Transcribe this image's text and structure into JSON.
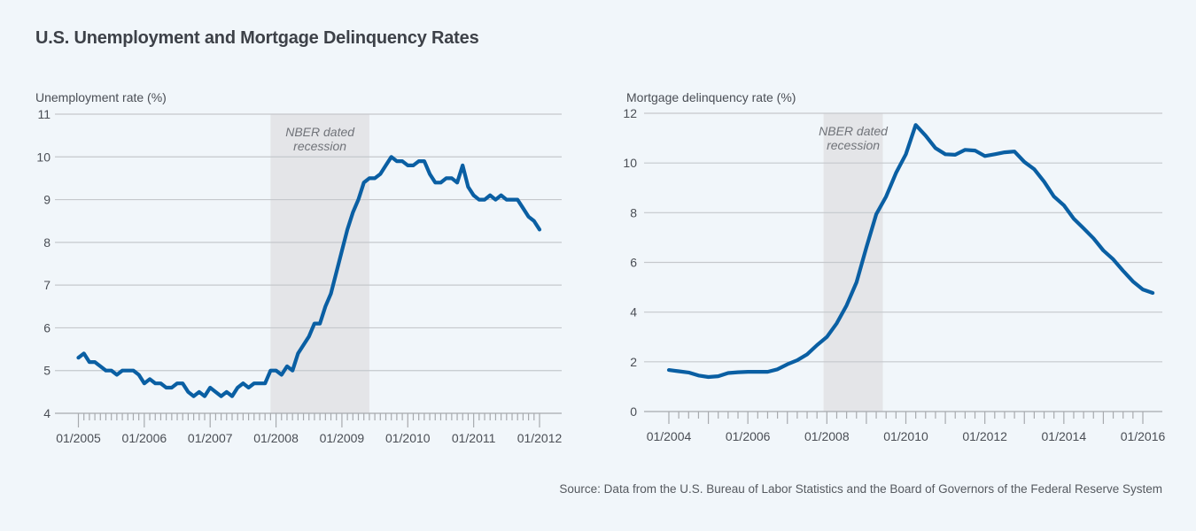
{
  "title": "U.S. Unemployment and Mortgage Delinquency Rates",
  "source": "Source: Data from the U.S. Bureau of Labor Statistics and the Board of Governors of the Federal Reserve System",
  "colors": {
    "line": "#0a5fa3",
    "recession": "#e4e5e8",
    "background": "#f1f6fa"
  },
  "chart_data": [
    {
      "type": "line",
      "title": "",
      "ylabel": "Unemployment rate (%)",
      "xlabel": "",
      "frequency": "monthly",
      "x_start": "01/2005",
      "x_end": "01/2012",
      "ylim": [
        4,
        11
      ],
      "yticks": [
        4,
        5,
        6,
        7,
        8,
        9,
        10,
        11
      ],
      "xtick_labels": [
        "01/2005",
        "01/2006",
        "01/2007",
        "01/2008",
        "01/2009",
        "01/2010",
        "01/2011",
        "01/2012"
      ],
      "grid": true,
      "recession": {
        "label_line1": "NBER dated",
        "label_line2": "recession",
        "start": "12/2007",
        "end": "06/2009"
      },
      "series": [
        {
          "name": "Unemployment rate",
          "values": [
            5.3,
            5.4,
            5.2,
            5.2,
            5.1,
            5.0,
            5.0,
            4.9,
            5.0,
            5.0,
            5.0,
            4.9,
            4.7,
            4.8,
            4.7,
            4.7,
            4.6,
            4.6,
            4.7,
            4.7,
            4.5,
            4.4,
            4.5,
            4.4,
            4.6,
            4.5,
            4.4,
            4.5,
            4.4,
            4.6,
            4.7,
            4.6,
            4.7,
            4.7,
            4.7,
            5.0,
            5.0,
            4.9,
            5.1,
            5.0,
            5.4,
            5.6,
            5.8,
            6.1,
            6.1,
            6.5,
            6.8,
            7.3,
            7.8,
            8.3,
            8.7,
            9.0,
            9.4,
            9.5,
            9.5,
            9.6,
            9.8,
            10.0,
            9.9,
            9.9,
            9.8,
            9.8,
            9.9,
            9.9,
            9.6,
            9.4,
            9.4,
            9.5,
            9.5,
            9.4,
            9.8,
            9.3,
            9.1,
            9.0,
            9.0,
            9.1,
            9.0,
            9.1,
            9.0,
            9.0,
            9.0,
            8.8,
            8.6,
            8.5,
            8.3
          ]
        }
      ]
    },
    {
      "type": "line",
      "title": "",
      "ylabel": "Mortgage delinquency rate (%)",
      "xlabel": "",
      "frequency": "quarterly",
      "x_start": "01/2004",
      "x_end": "01/2016",
      "ylim": [
        0,
        12
      ],
      "yticks": [
        0,
        2,
        4,
        6,
        8,
        10,
        12
      ],
      "xtick_labels": [
        "01/2004",
        "01/2006",
        "01/2008",
        "01/2010",
        "01/2012",
        "01/2014",
        "01/2016"
      ],
      "grid": true,
      "recession": {
        "label_line1": "NBER dated",
        "label_line2": "recession",
        "start": "12/2007",
        "end": "06/2009"
      },
      "series": [
        {
          "name": "Mortgage delinquency rate",
          "values": [
            1.67,
            1.62,
            1.57,
            1.45,
            1.39,
            1.42,
            1.55,
            1.58,
            1.6,
            1.6,
            1.6,
            1.7,
            1.9,
            2.06,
            2.3,
            2.67,
            3.0,
            3.55,
            4.27,
            5.2,
            6.6,
            7.94,
            8.65,
            9.6,
            10.35,
            11.53,
            11.1,
            10.6,
            10.35,
            10.33,
            10.53,
            10.5,
            10.28,
            10.35,
            10.43,
            10.46,
            10.04,
            9.75,
            9.25,
            8.65,
            8.3,
            7.76,
            7.37,
            6.97,
            6.48,
            6.12,
            5.66,
            5.23,
            4.91,
            4.77
          ]
        }
      ]
    }
  ]
}
